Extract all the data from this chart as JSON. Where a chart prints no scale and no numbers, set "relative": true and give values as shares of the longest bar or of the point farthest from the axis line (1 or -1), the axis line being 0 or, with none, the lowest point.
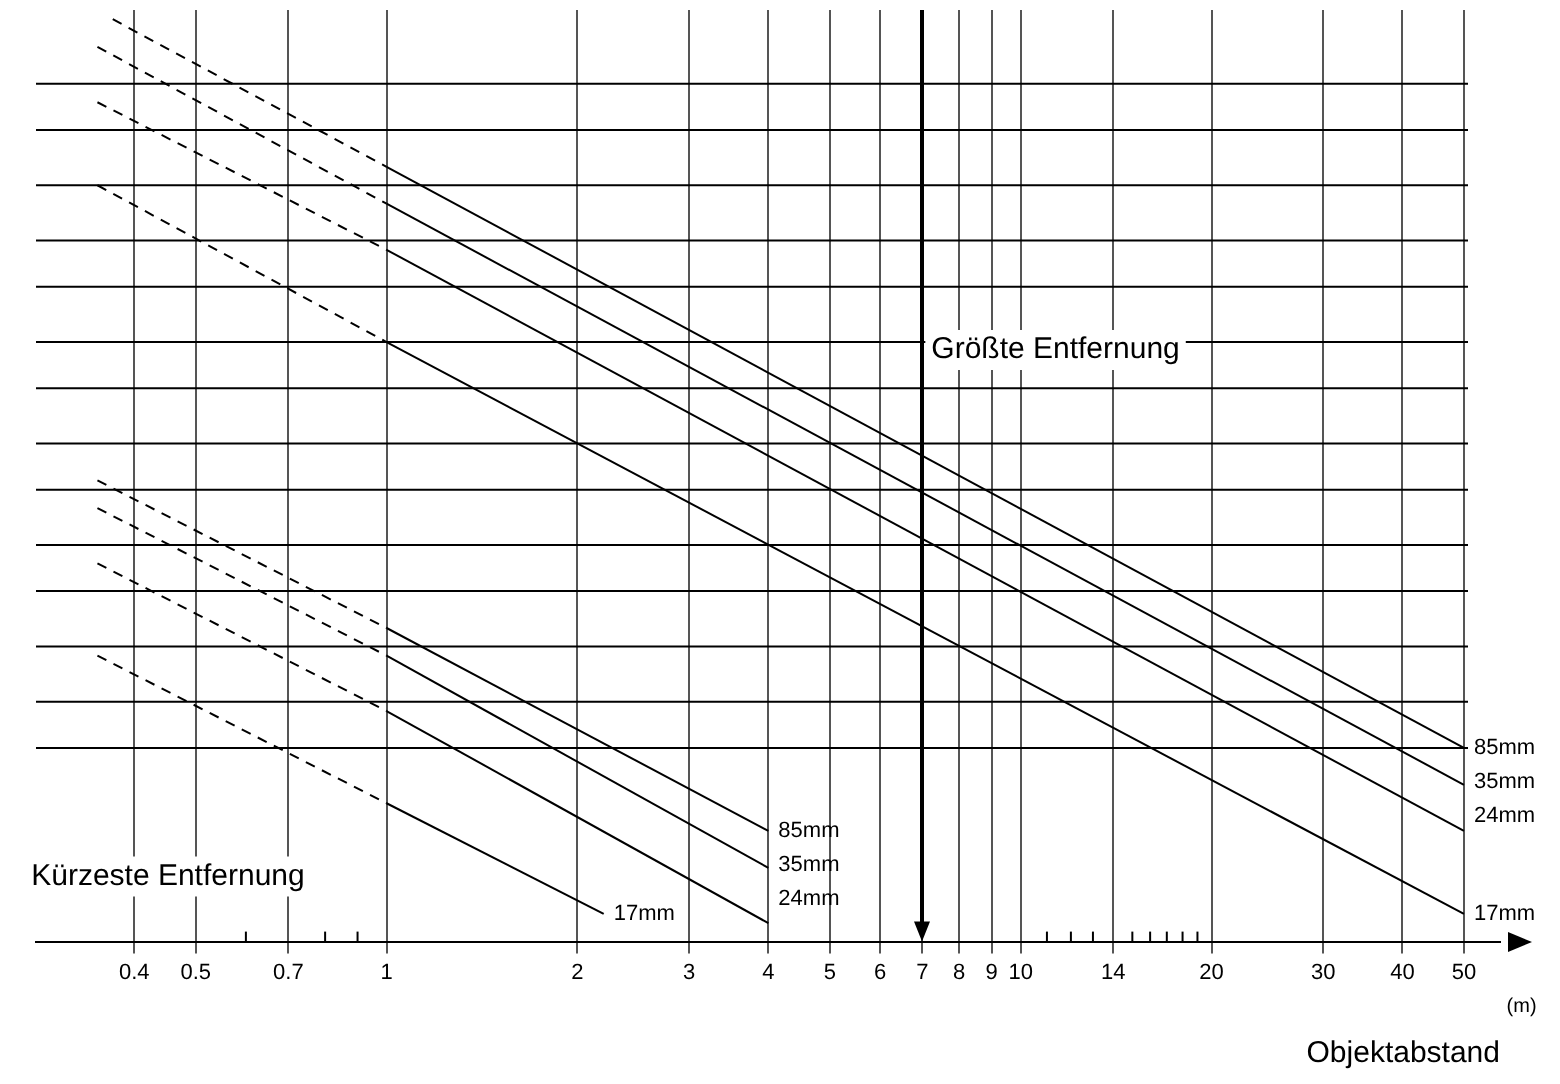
{
  "chart_data": {
    "type": "line",
    "xlabel": "Objektabstand",
    "annotations": [
      "Größte Entfernung",
      "Kürzeste Entfernung",
      "(m)"
    ],
    "relative": true,
    "log": "x",
    "xlim": [
      0.28,
      57
    ],
    "xticks": [
      0.4,
      0.5,
      {
        "value": 0.6,
        "label": null
      },
      0.7,
      {
        "value": 0.8,
        "label": null
      },
      {
        "value": 0.9,
        "label": null
      },
      1,
      2,
      3,
      4,
      5,
      6,
      7,
      8,
      9,
      10,
      {
        "value": 11,
        "label": null
      },
      {
        "value": 12,
        "label": null
      },
      {
        "value": 13,
        "label": null
      },
      14,
      {
        "value": 15,
        "label": null
      },
      {
        "value": 16,
        "label": null
      },
      {
        "value": 17,
        "label": null
      },
      {
        "value": 18,
        "label": null
      },
      {
        "value": 19,
        "label": null
      },
      20,
      30,
      40,
      50
    ],
    "grid": "x",
    "legend": false,
    "marker": "none",
    "line_style": "solid",
    "series": [
      {
        "line_style": "dashed",
        "color": "#000000",
        "x": [
          0.37,
          1
        ],
        "values": [
          1.0,
          0.84
        ]
      },
      {
        "name": "85mm",
        "color": "#000000",
        "x": [
          1,
          50
        ],
        "values": [
          0.84,
          0.21
        ]
      },
      {
        "line_style": "dashed",
        "color": "#000000",
        "x": [
          0.35,
          1
        ],
        "values": [
          0.97,
          0.8
        ]
      },
      {
        "name": "35mm",
        "color": "#000000",
        "x": [
          1,
          50
        ],
        "values": [
          0.8,
          0.17
        ]
      },
      {
        "line_style": "dashed",
        "color": "#000000",
        "x": [
          0.35,
          1
        ],
        "values": [
          0.91,
          0.75
        ]
      },
      {
        "name": "24mm",
        "color": "#000000",
        "x": [
          1,
          50
        ],
        "values": [
          0.75,
          0.12
        ]
      },
      {
        "line_style": "dashed",
        "color": "#000000",
        "x": [
          0.35,
          1
        ],
        "values": [
          0.82,
          0.65
        ]
      },
      {
        "name": "17mm",
        "color": "#000000",
        "x": [
          1,
          50
        ],
        "values": [
          0.65,
          0.03
        ]
      },
      {
        "line_style": "dashed",
        "color": "#000000",
        "x": [
          0.35,
          1
        ],
        "values": [
          0.5,
          0.34
        ]
      },
      {
        "name": "85mm",
        "color": "#000000",
        "x": [
          1,
          4
        ],
        "values": [
          0.34,
          0.12
        ]
      },
      {
        "line_style": "dashed",
        "color": "#000000",
        "x": [
          0.35,
          1
        ],
        "values": [
          0.47,
          0.31
        ]
      },
      {
        "name": "35mm",
        "color": "#000000",
        "x": [
          1,
          4
        ],
        "values": [
          0.31,
          0.08
        ]
      },
      {
        "line_style": "dashed",
        "color": "#000000",
        "x": [
          0.35,
          1
        ],
        "values": [
          0.41,
          0.25
        ]
      },
      {
        "name": "24mm",
        "color": "#000000",
        "x": [
          1,
          4
        ],
        "values": [
          0.25,
          0.02
        ]
      },
      {
        "line_style": "dashed",
        "color": "#000000",
        "x": [
          0.35,
          1
        ],
        "values": [
          0.31,
          0.15
        ]
      },
      {
        "name": "17mm",
        "color": "#000000",
        "x": [
          1,
          2.2
        ],
        "values": [
          0.15,
          0.03
        ]
      }
    ],
    "ref_lines": [
      {
        "axis": "y",
        "value": 0.93
      },
      {
        "axis": "y",
        "value": 0.88
      },
      {
        "axis": "y",
        "value": 0.82
      },
      {
        "axis": "y",
        "value": 0.76
      },
      {
        "axis": "y",
        "value": 0.71
      },
      {
        "axis": "y",
        "value": 0.65
      },
      {
        "axis": "y",
        "value": 0.6
      },
      {
        "axis": "y",
        "value": 0.54
      },
      {
        "axis": "y",
        "value": 0.49
      },
      {
        "axis": "y",
        "value": 0.43
      },
      {
        "axis": "y",
        "value": 0.38
      },
      {
        "axis": "y",
        "value": 0.32
      },
      {
        "axis": "y",
        "value": 0.26
      },
      {
        "axis": "y",
        "value": 0.21
      },
      {
        "axis": "x",
        "value": 7
      }
    ]
  }
}
